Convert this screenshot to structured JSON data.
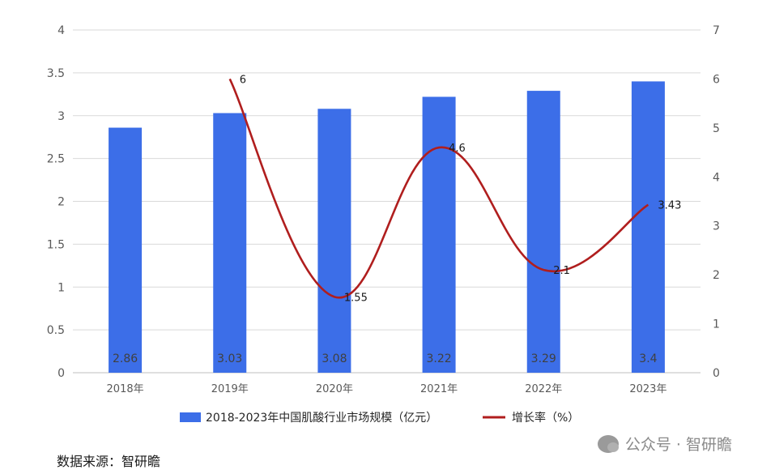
{
  "chart_data": {
    "type": "bar",
    "categories": [
      "2018年",
      "2019年",
      "2020年",
      "2021年",
      "2022年",
      "2023年"
    ],
    "series": [
      {
        "name": "2018-2023年中国肌酸行业市场规模（亿元）",
        "type": "bar",
        "axis": "left",
        "color": "#3C6EE8",
        "values": [
          2.86,
          3.03,
          3.08,
          3.22,
          3.29,
          3.4
        ],
        "labels": [
          "2.86",
          "3.03",
          "3.08",
          "3.22",
          "3.29",
          "3.4"
        ]
      },
      {
        "name": "增长率（%）",
        "type": "line",
        "axis": "right",
        "color": "#B01E1E",
        "values": [
          null,
          6,
          1.55,
          4.6,
          2.1,
          3.43
        ],
        "labels": [
          "",
          "6",
          "1.55",
          "4.6",
          "2.1",
          "3.43"
        ]
      }
    ],
    "y_left": {
      "min": 0,
      "max": 4,
      "ticks": [
        "0",
        "0.5",
        "1",
        "1.5",
        "2",
        "2.5",
        "3",
        "3.5",
        "4"
      ]
    },
    "y_right": {
      "min": 0,
      "max": 7,
      "ticks": [
        "0",
        "1",
        "2",
        "3",
        "4",
        "5",
        "6",
        "7"
      ]
    },
    "grid": true,
    "legend_position": "bottom"
  },
  "footer": {
    "source": "数据来源：智研瞻",
    "watermark": "公众号 · 智研瞻"
  }
}
